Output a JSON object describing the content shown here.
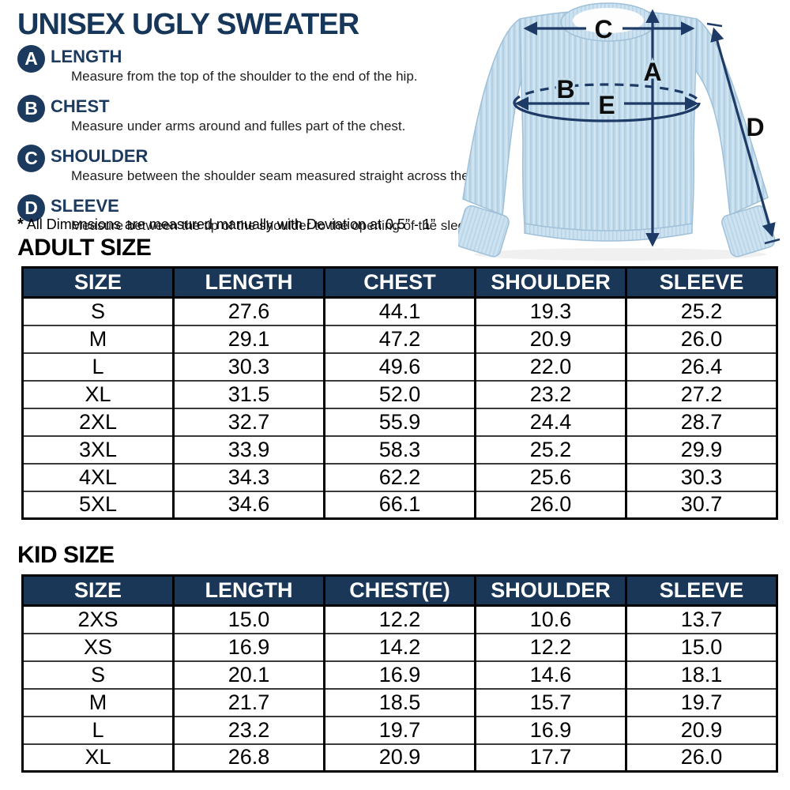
{
  "title": "UNISEX UGLY SWEATER",
  "colors": {
    "navy": "#1b3a5e",
    "header_navy": "#1a3757",
    "arrow_navy": "#1e3a66",
    "sweater_blue": "#c2dcec"
  },
  "measurements": [
    {
      "letter": "A",
      "label": "LENGTH",
      "description": "Measure from the top of the shoulder to the end of the hip."
    },
    {
      "letter": "B",
      "label": "CHEST",
      "description": "Measure under arms around and fulles part of the chest."
    },
    {
      "letter": "C",
      "label": "SHOULDER",
      "description": "Measure between the shoulder seam measured straight across the back."
    },
    {
      "letter": "D",
      "label": "SLEEVE",
      "description": "Measure between the tip of the shoulder to the opening of the sleeve."
    }
  ],
  "note": {
    "star": "*",
    "text": "All Dimensions are measured manually with Deviation at 0.5” - 1”"
  },
  "diagram": {
    "a": "A",
    "b": "B",
    "c": "C",
    "d": "D",
    "e": "E"
  },
  "adult": {
    "heading": "ADULT SIZE",
    "columns": [
      "SIZE",
      "LENGTH",
      "CHEST",
      "SHOULDER",
      "SLEEVE"
    ],
    "rows": [
      [
        "S",
        "27.6",
        "44.1",
        "19.3",
        "25.2"
      ],
      [
        "M",
        "29.1",
        "47.2",
        "20.9",
        "26.0"
      ],
      [
        "L",
        "30.3",
        "49.6",
        "22.0",
        "26.4"
      ],
      [
        "XL",
        "31.5",
        "52.0",
        "23.2",
        "27.2"
      ],
      [
        "2XL",
        "32.7",
        "55.9",
        "24.4",
        "28.7"
      ],
      [
        "3XL",
        "33.9",
        "58.3",
        "25.2",
        "29.9"
      ],
      [
        "4XL",
        "34.3",
        "62.2",
        "25.6",
        "30.3"
      ],
      [
        "5XL",
        "34.6",
        "66.1",
        "26.0",
        "30.7"
      ]
    ]
  },
  "kid": {
    "heading": "KID SIZE",
    "columns": [
      "SIZE",
      "LENGTH",
      "CHEST(E)",
      "SHOULDER",
      "SLEEVE"
    ],
    "rows": [
      [
        "2XS",
        "15.0",
        "12.2",
        "10.6",
        "13.7"
      ],
      [
        "XS",
        "16.9",
        "14.2",
        "12.2",
        "15.0"
      ],
      [
        "S",
        "20.1",
        "16.9",
        "14.6",
        "18.1"
      ],
      [
        "M",
        "21.7",
        "18.5",
        "15.7",
        "19.7"
      ],
      [
        "L",
        "23.2",
        "19.7",
        "16.9",
        "20.9"
      ],
      [
        "XL",
        "26.8",
        "20.9",
        "17.7",
        "26.0"
      ]
    ]
  }
}
